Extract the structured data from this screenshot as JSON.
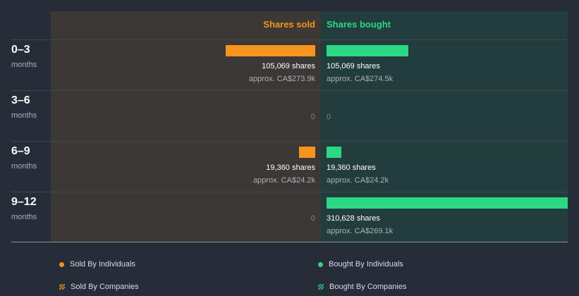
{
  "chart_data": {
    "type": "bar",
    "orientation": "horizontal-diverging",
    "columns": [
      "Shares sold",
      "Shares bought"
    ],
    "categories": [
      {
        "period": "0–3",
        "unit": "months"
      },
      {
        "period": "3–6",
        "unit": "months"
      },
      {
        "period": "6–9",
        "unit": "months"
      },
      {
        "period": "9–12",
        "unit": "months"
      }
    ],
    "series": [
      {
        "name": "Shares sold",
        "color": "#f7941d",
        "values": [
          105069,
          0,
          19360,
          0
        ],
        "labels": [
          "105,069 shares",
          "0",
          "19,360 shares",
          "0"
        ],
        "approx": [
          "approx. CA$273.9k",
          "",
          "approx. CA$24.2k",
          ""
        ]
      },
      {
        "name": "Shares bought",
        "color": "#2bd883",
        "values": [
          105069,
          0,
          19360,
          310628
        ],
        "labels": [
          "105,069 shares",
          "0",
          "19,360 shares",
          "310,628 shares"
        ],
        "approx": [
          "approx. CA$274.5k",
          "",
          "approx. CA$24.2k",
          "approx. CA$269.1k"
        ]
      }
    ],
    "xlim": [
      0,
      310628
    ]
  },
  "legend": [
    {
      "label": "Sold By Individuals",
      "color": "#f7941d",
      "icon": "dot-icon"
    },
    {
      "label": "Bought By Individuals",
      "color": "#2bd883",
      "icon": "dot-icon"
    },
    {
      "label": "Sold By Companies",
      "color": "#f7941d",
      "icon": "stripe-icon"
    },
    {
      "label": "Bought By Companies",
      "color": "#2bd883",
      "icon": "stripe-icon"
    }
  ]
}
